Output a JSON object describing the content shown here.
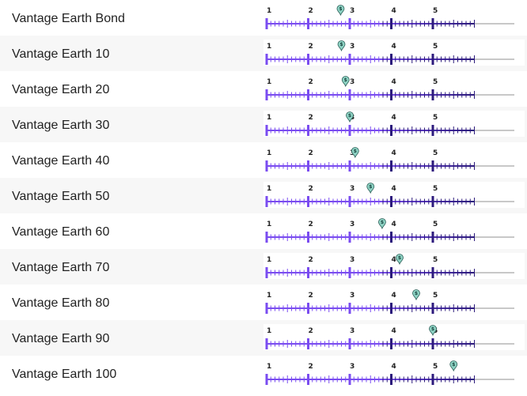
{
  "colors": {
    "scale_purple": "#7a4cf0",
    "scale_dark": "#2c1a7c",
    "track_grey": "#c8c8c8",
    "marker_fill": "#8ed3c4",
    "marker_stroke": "#2c5f58"
  },
  "scale": {
    "min": 1,
    "max": 6,
    "labels": [
      "1",
      "2",
      "3",
      "4",
      "5"
    ],
    "marker_glyph": "$",
    "marker_icon": "map-pin-dollar-icon"
  },
  "funds": [
    {
      "name": "Vantage Earth Bond",
      "score": 2.78
    },
    {
      "name": "Vantage Earth 10",
      "score": 2.8
    },
    {
      "name": "Vantage Earth 20",
      "score": 2.9
    },
    {
      "name": "Vantage Earth 30",
      "score": 3.0
    },
    {
      "name": "Vantage Earth 40",
      "score": 3.13
    },
    {
      "name": "Vantage Earth 50",
      "score": 3.5
    },
    {
      "name": "Vantage Earth 60",
      "score": 3.78
    },
    {
      "name": "Vantage Earth 70",
      "score": 4.2
    },
    {
      "name": "Vantage Earth 80",
      "score": 4.6
    },
    {
      "name": "Vantage Earth 90",
      "score": 5.0
    },
    {
      "name": "Vantage Earth 100",
      "score": 5.5
    }
  ]
}
